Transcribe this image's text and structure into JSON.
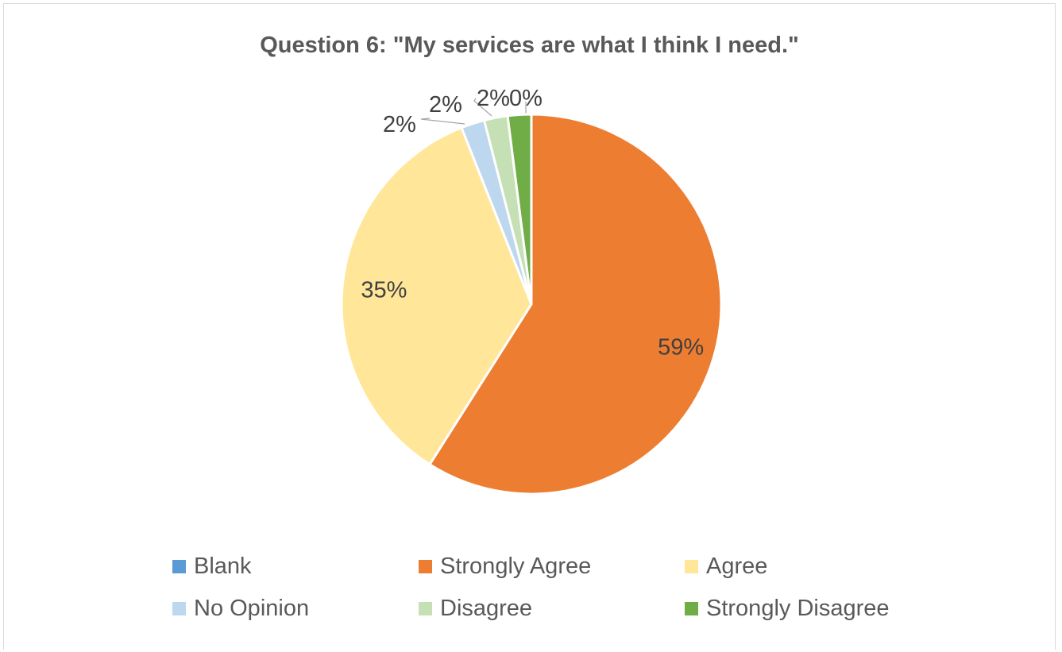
{
  "chart_data": {
    "type": "pie",
    "title": "Question 6: \"My services are what I think I need.\"",
    "categories": [
      "Blank",
      "Strongly Agree",
      "Agree",
      "No Opinion",
      "Disagree",
      "Strongly Disagree"
    ],
    "values": [
      0,
      59,
      35,
      2,
      2,
      2
    ],
    "data_labels": [
      "0%",
      "59%",
      "35%",
      "2%",
      "2%",
      "2%"
    ],
    "colors": [
      "#5b9bd5",
      "#ed7d31",
      "#ffe699",
      "#bdd7ee",
      "#c5e0b4",
      "#70ad47"
    ],
    "legend_position": "bottom"
  }
}
